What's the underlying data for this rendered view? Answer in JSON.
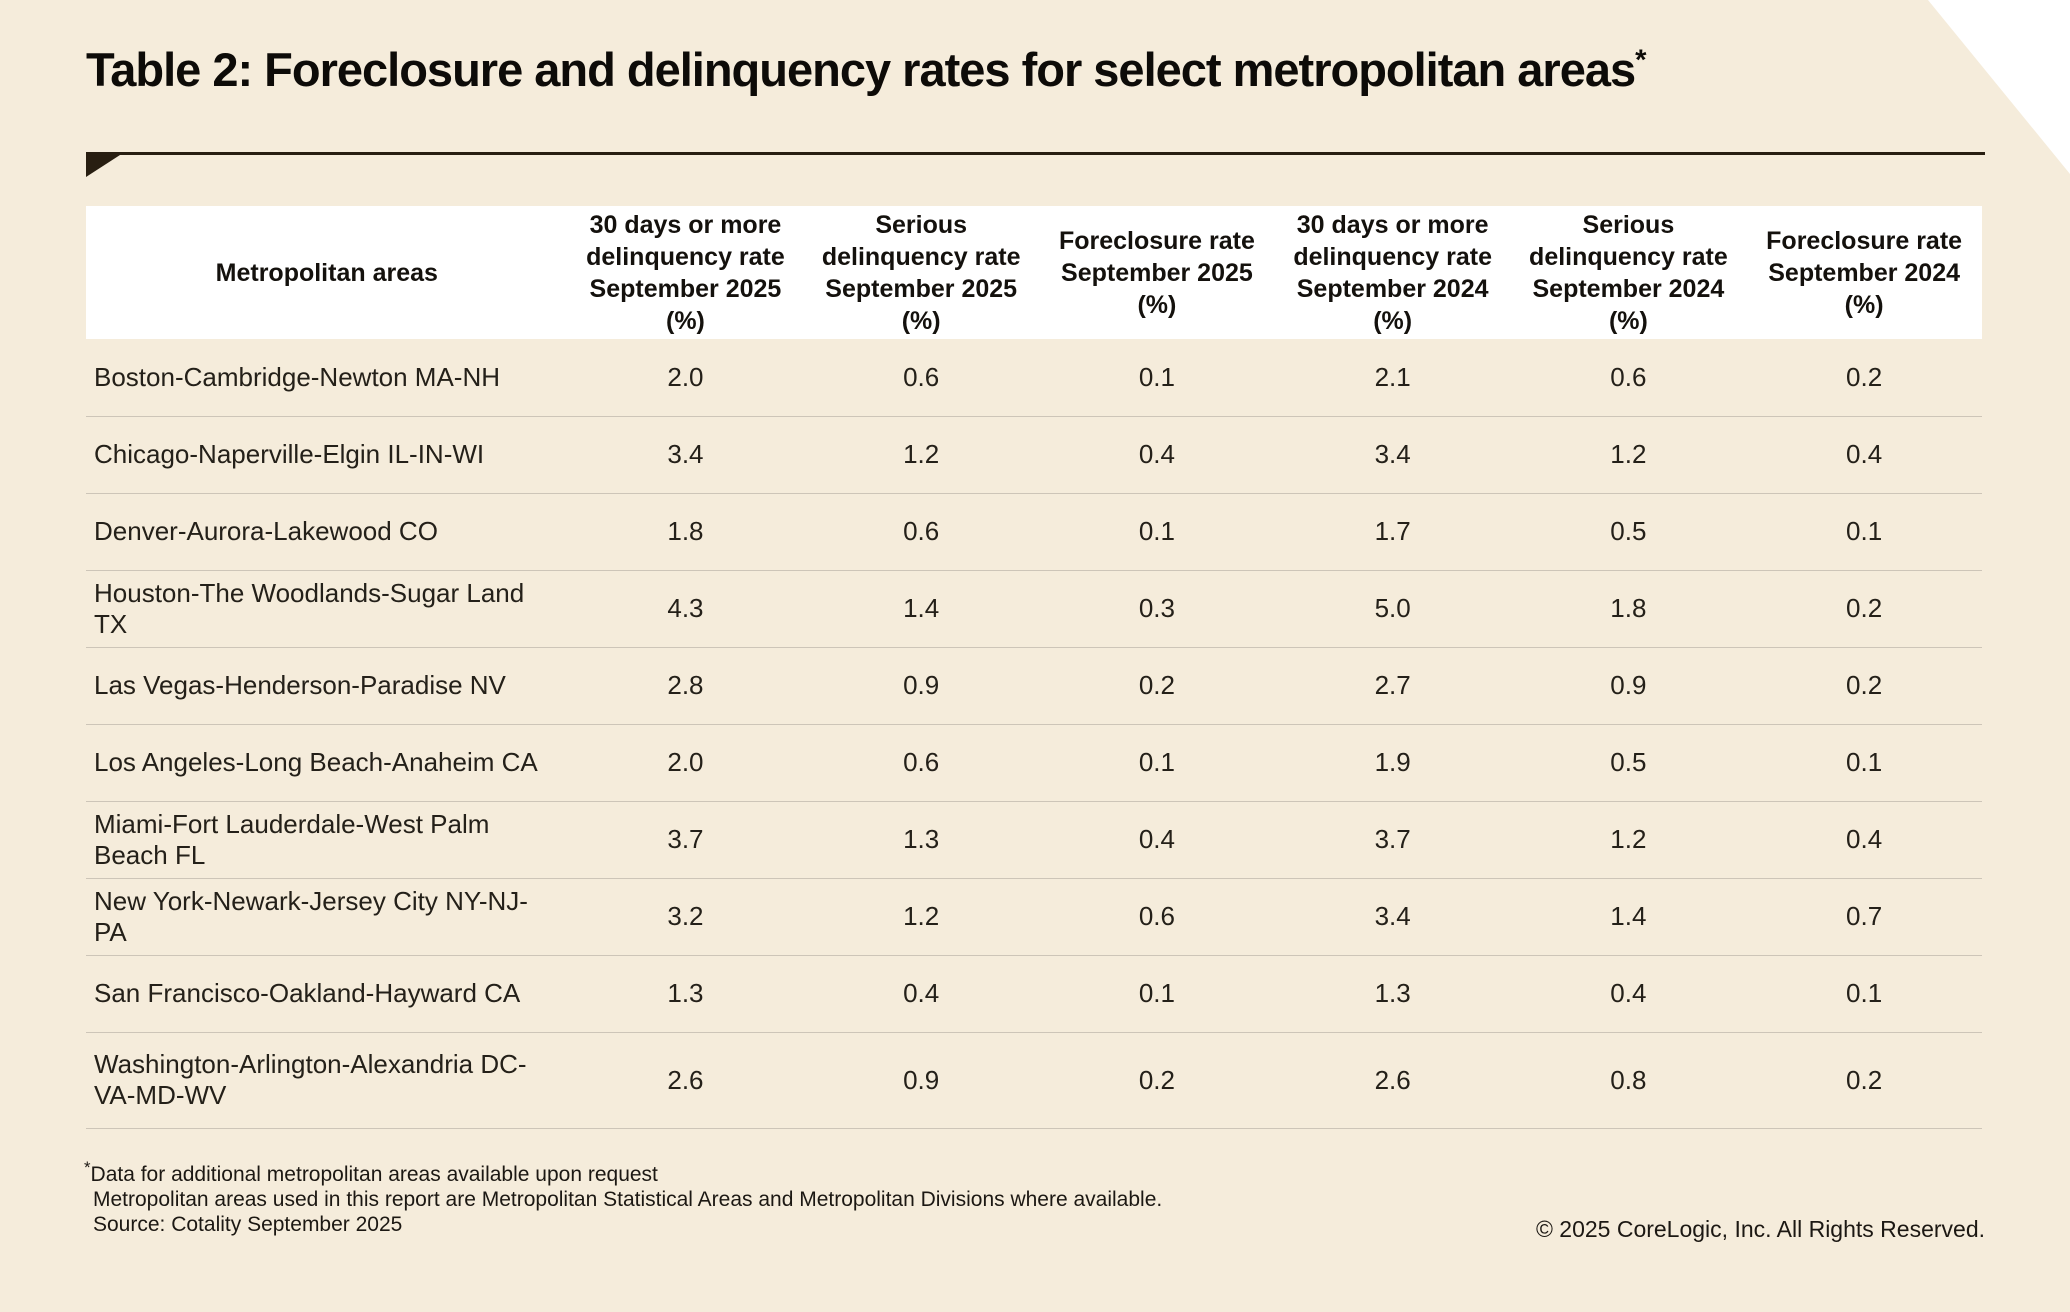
{
  "page": {
    "title": "Table 2: Foreclosure and delinquency rates for select metropolitan areas",
    "title_asterisk": "*"
  },
  "table": {
    "columns": [
      "Metropolitan areas",
      "30 days or more\ndelinquency rate\nSeptember 2025\n(%)",
      "Serious\ndelinquency rate\nSeptember 2025\n(%)",
      "Foreclosure rate\nSeptember 2025\n(%)",
      "30 days or more\ndelinquency rate\nSeptember 2024\n(%)",
      "Serious\ndelinquency rate\nSeptember 2024\n(%)",
      "Foreclosure rate\nSeptember 2024\n(%)"
    ],
    "rows": [
      {
        "area": "Boston-Cambridge-Newton MA-NH",
        "values": [
          "2.0",
          "0.6",
          "0.1",
          "2.1",
          "0.6",
          "0.2"
        ]
      },
      {
        "area": "Chicago-Naperville-Elgin IL-IN-WI",
        "values": [
          "3.4",
          "1.2",
          "0.4",
          "3.4",
          "1.2",
          "0.4"
        ]
      },
      {
        "area": "Denver-Aurora-Lakewood CO",
        "values": [
          "1.8",
          "0.6",
          "0.1",
          "1.7",
          "0.5",
          "0.1"
        ]
      },
      {
        "area": "Houston-The Woodlands-Sugar Land TX",
        "values": [
          "4.3",
          "1.4",
          "0.3",
          "5.0",
          "1.8",
          "0.2"
        ]
      },
      {
        "area": "Las Vegas-Henderson-Paradise NV",
        "values": [
          "2.8",
          "0.9",
          "0.2",
          "2.7",
          "0.9",
          "0.2"
        ]
      },
      {
        "area": "Los Angeles-Long Beach-Anaheim CA",
        "values": [
          "2.0",
          "0.6",
          "0.1",
          "1.9",
          "0.5",
          "0.1"
        ]
      },
      {
        "area": "Miami-Fort Lauderdale-West Palm Beach FL",
        "values": [
          "3.7",
          "1.3",
          "0.4",
          "3.7",
          "1.2",
          "0.4"
        ]
      },
      {
        "area": "New York-Newark-Jersey City NY-NJ-PA",
        "values": [
          "3.2",
          "1.2",
          "0.6",
          "3.4",
          "1.4",
          "0.7"
        ]
      },
      {
        "area": "San Francisco-Oakland-Hayward CA",
        "values": [
          "1.3",
          "0.4",
          "0.1",
          "1.3",
          "0.4",
          "0.1"
        ]
      },
      {
        "area": "Washington-Arlington-Alexandria DC-VA-MD-WV",
        "values": [
          "2.6",
          "0.9",
          "0.2",
          "2.6",
          "0.8",
          "0.2"
        ]
      }
    ]
  },
  "footnotes": {
    "asterisk": "*",
    "line1": "Data for additional metropolitan areas available upon request",
    "line2": "Metropolitan areas used in this report are Metropolitan Statistical Areas and Metropolitan Divisions where available.",
    "line3": "Source: Cotality September 2025"
  },
  "copyright": "© 2025 CoreLogic, Inc. All Rights Reserved.",
  "colors": {
    "background": "#f5ecdb",
    "header_bg": "#ffffff",
    "text": "#1c1813",
    "rule": "#281e11",
    "separator": "#cdc5b8"
  }
}
